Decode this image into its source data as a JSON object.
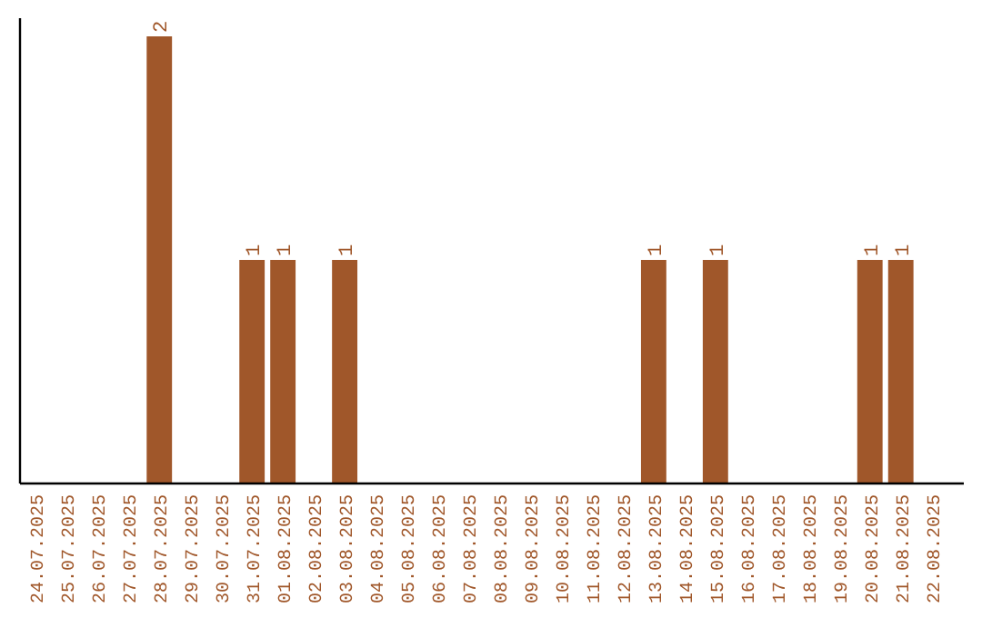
{
  "chart_data": {
    "type": "bar",
    "categories": [
      "24.07.2025",
      "25.07.2025",
      "26.07.2025",
      "27.07.2025",
      "28.07.2025",
      "29.07.2025",
      "30.07.2025",
      "31.07.2025",
      "01.08.2025",
      "02.08.2025",
      "03.08.2025",
      "04.08.2025",
      "05.08.2025",
      "06.08.2025",
      "07.08.2025",
      "08.08.2025",
      "09.08.2025",
      "10.08.2025",
      "11.08.2025",
      "12.08.2025",
      "13.08.2025",
      "14.08.2025",
      "15.08.2025",
      "16.08.2025",
      "17.08.2025",
      "18.08.2025",
      "19.08.2025",
      "20.08.2025",
      "21.08.2025",
      "22.08.2025"
    ],
    "values": [
      0,
      0,
      0,
      0,
      2,
      0,
      0,
      1,
      1,
      0,
      1,
      0,
      0,
      0,
      0,
      0,
      0,
      0,
      0,
      0,
      1,
      0,
      1,
      0,
      0,
      0,
      0,
      1,
      1,
      0
    ],
    "value_labels": [
      null,
      null,
      null,
      null,
      "2",
      null,
      null,
      "1",
      "1",
      null,
      "1",
      null,
      null,
      null,
      null,
      null,
      null,
      null,
      null,
      null,
      "1",
      null,
      "1",
      null,
      null,
      null,
      null,
      "1",
      "1",
      null
    ],
    "color": "#a0572a"
  }
}
